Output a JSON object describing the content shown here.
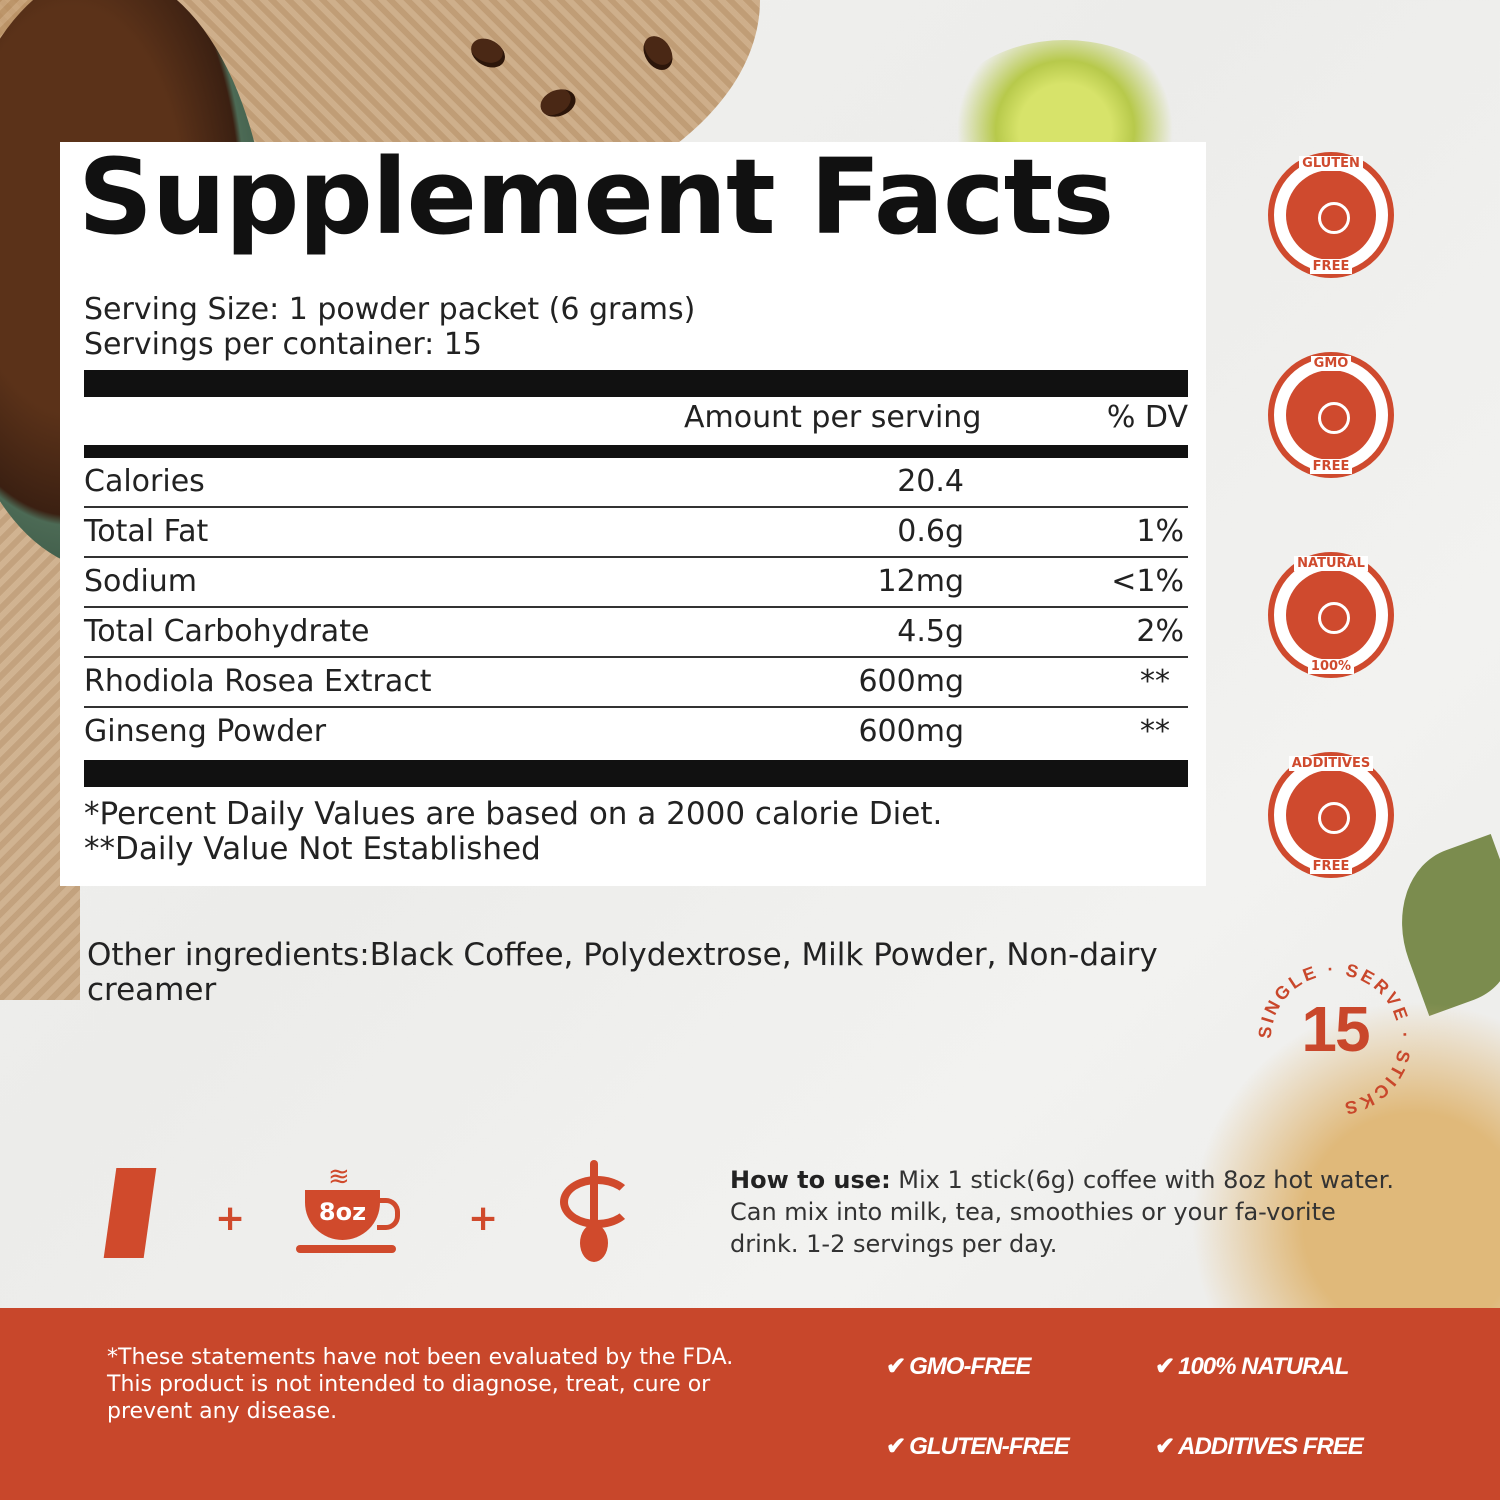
{
  "panel": {
    "title": "Supplement Facts",
    "serving_size": "Serving Size: 1 powder packet (6 grams)",
    "servings_per_container": "Servings per container: 15",
    "header_amount": "Amount per serving",
    "header_dv": "% DV",
    "rows": [
      {
        "name": "Calories",
        "amount": "20.4",
        "dv": ""
      },
      {
        "name": "Total Fat",
        "amount": "0.6g",
        "dv": "1%"
      },
      {
        "name": "Sodium",
        "amount": "12mg",
        "dv": "<1%"
      },
      {
        "name": "Total Carbohydrate",
        "amount": "4.5g",
        "dv": "2%"
      },
      {
        "name": "Rhodiola Rosea Extract",
        "amount": "600mg",
        "dv": "**"
      },
      {
        "name": "Ginseng Powder",
        "amount": "600mg",
        "dv": "**"
      }
    ],
    "footnote_1": "*Percent Daily Values are based on a 2000 calorie Diet.",
    "footnote_2": "**Daily Value Not Established"
  },
  "other_ingredients": "Other ingredients:Black Coffee, Polydextrose, Milk Powder, Non-dairy creamer",
  "badges": [
    {
      "top": "GLUTEN",
      "bottom": "FREE",
      "icon": "wheat-icon"
    },
    {
      "top": "GMO",
      "bottom": "FREE",
      "icon": "dna-icon"
    },
    {
      "top": "NATURAL",
      "bottom": "100%",
      "icon": "leaf-icon"
    },
    {
      "top": "ADDITIVES",
      "bottom": "FREE",
      "icon": "flask-icon"
    }
  ],
  "single_serve": {
    "number": "15",
    "text": "SINGLE · SERVE · STICKS"
  },
  "how_to": {
    "cup_label": "8oz",
    "plus": "+",
    "label": "How to use:",
    "text": " Mix 1 stick(6g)  coffee with 8oz hot water. Can mix into milk, tea, smoothies or your fa-vorite drink. 1-2 servings per day."
  },
  "footer": {
    "disclaimer_1": "*These statements have not been evaluated by the FDA.",
    "disclaimer_2": "This product is not intended to diagnose, treat, cure or",
    "disclaimer_3": "prevent any disease.",
    "check": "✔",
    "claims": [
      "GMO-FREE",
      "100% NATURAL",
      "GLUTEN-FREE",
      "ADDITIVES FREE"
    ]
  },
  "colors": {
    "accent": "#c8472b",
    "panel": "#ffffff",
    "text": "#222222"
  }
}
